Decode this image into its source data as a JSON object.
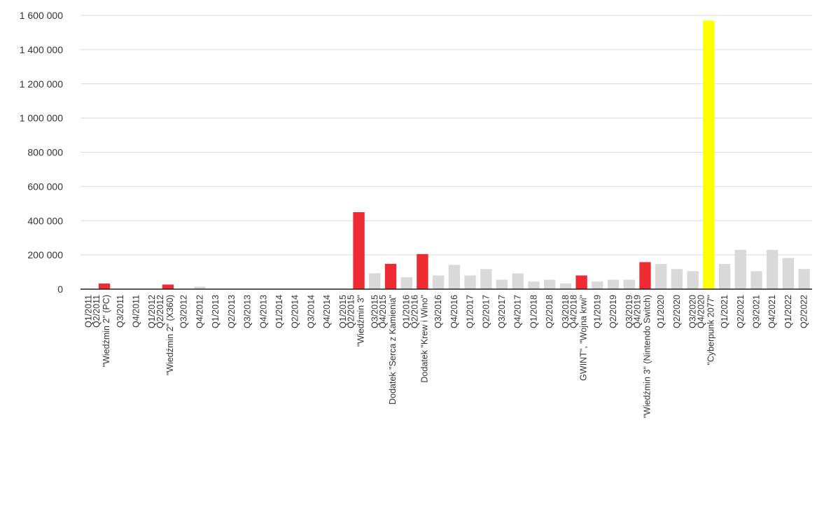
{
  "chart_data": {
    "type": "bar",
    "title": "",
    "xlabel": "",
    "ylabel": "",
    "ylim": [
      0,
      1600000
    ],
    "yticks": [
      0,
      200000,
      400000,
      600000,
      800000,
      1000000,
      1200000,
      1400000,
      1600000
    ],
    "ytick_labels": [
      "0",
      "200 000",
      "400 000",
      "600 000",
      "800 000",
      "1 000 000",
      "1 200 000",
      "1 400 000",
      "1 600 000"
    ],
    "grid": true,
    "legend": "none",
    "colors": {
      "release": "#ee2a32",
      "cyberpunk": "#ffff00",
      "regular": "#d9d9d9"
    },
    "categories": [
      "Q1/2011",
      "Q2/2011",
      "Q3/2011",
      "Q4/2011",
      "Q1/2012",
      "Q2/2012",
      "Q3/2012",
      "Q4/2012",
      "Q1/2013",
      "Q2/2013",
      "Q3/2013",
      "Q4/2013",
      "Q1/2014",
      "Q2/2014",
      "Q3/2014",
      "Q4/2014",
      "Q1/2015",
      "Q2/2015",
      "Q3/2015",
      "Q4/2015",
      "Q1/2016",
      "Q2/2016",
      "Q3/2016",
      "Q4/2016",
      "Q1/2017",
      "Q2/2017",
      "Q3/2017",
      "Q4/2017",
      "Q1/2018",
      "Q2/2018",
      "Q3/2018",
      "Q4/2018",
      "Q1/2019",
      "Q2/2019",
      "Q3/2019",
      "Q4/2019",
      "Q1/2020",
      "Q2/2020",
      "Q3/2020",
      "Q4/2020",
      "Q1/2021",
      "Q2/2021",
      "Q3/2021",
      "Q4/2021",
      "Q1/2022",
      "Q2/2022"
    ],
    "values": [
      0,
      33000,
      0,
      0,
      0,
      27000,
      2000,
      15000,
      0,
      0,
      0,
      0,
      0,
      0,
      0,
      0,
      0,
      450000,
      93000,
      148000,
      70000,
      205000,
      80000,
      142000,
      80000,
      117000,
      55000,
      92000,
      45000,
      55000,
      33000,
      80000,
      45000,
      55000,
      55000,
      158000,
      147000,
      118000,
      105000,
      1570000,
      147000,
      229000,
      105000,
      229000,
      182000,
      118000
    ],
    "bar_kind": [
      "regular",
      "release",
      "regular",
      "regular",
      "regular",
      "release",
      "regular",
      "regular",
      "regular",
      "regular",
      "regular",
      "regular",
      "regular",
      "regular",
      "regular",
      "regular",
      "regular",
      "release",
      "regular",
      "release",
      "regular",
      "release",
      "regular",
      "regular",
      "regular",
      "regular",
      "regular",
      "regular",
      "regular",
      "regular",
      "regular",
      "release",
      "regular",
      "regular",
      "regular",
      "release",
      "regular",
      "regular",
      "regular",
      "cyberpunk",
      "regular",
      "regular",
      "regular",
      "regular",
      "regular",
      "regular"
    ],
    "annotations": [
      {
        "category": "Q2/2011",
        "text": "\"Wiedźmin 2\" (PC)"
      },
      {
        "category": "Q2/2012",
        "text": "\"Wiedźmin 2\" (X360)"
      },
      {
        "category": "Q2/2015",
        "text": "\"Wiedźmin 3\""
      },
      {
        "category": "Q4/2015",
        "text": "Dodatek \"Serca z Kamienia\""
      },
      {
        "category": "Q2/2016",
        "text": "Dodatek \"Krew i Wino\""
      },
      {
        "category": "Q4/2018",
        "text": "GWINT\", \"Wojna krwi\""
      },
      {
        "category": "Q4/2019",
        "text": "\"Wiedźmin 3\" (Nintendo Switch)"
      },
      {
        "category": "Q4/2020",
        "text": "\"Cyberpunk 2077\""
      }
    ]
  }
}
